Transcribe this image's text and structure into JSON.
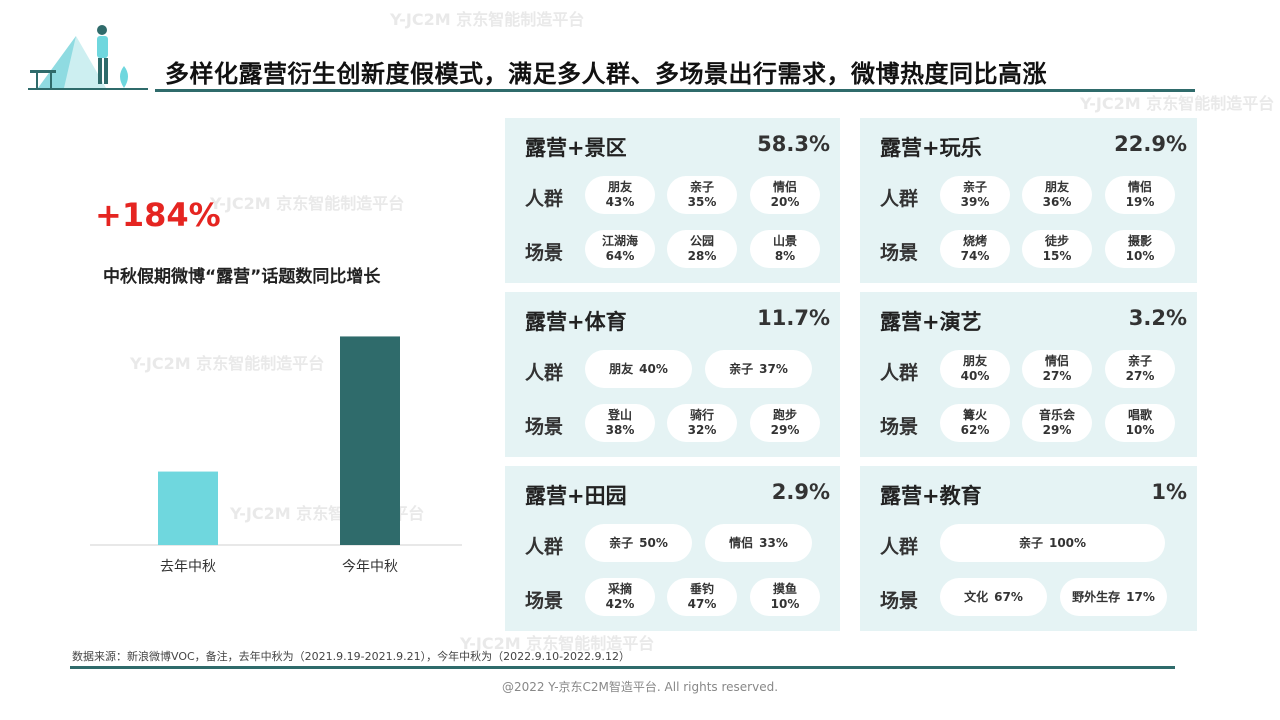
{
  "header": {
    "title": "多样化露营衍生创新度假模式，满足多人群、多场景出行需求，微博热度同比高涨"
  },
  "stat": {
    "value": "+184%",
    "desc": "中秋假期微博“露营”话题数同比增长"
  },
  "chart_data": {
    "type": "bar",
    "categories": [
      "去年中秋",
      "今年中秋"
    ],
    "values": [
      100,
      284
    ],
    "ylim": [
      0,
      320
    ],
    "colors": [
      "#6fd7de",
      "#2f6b6b"
    ],
    "grid": false
  },
  "cards": [
    {
      "title": "露营+景区",
      "pct": "58.3%",
      "rows": [
        {
          "label": "人群",
          "items": [
            {
              "name": "朋友",
              "value": "43%"
            },
            {
              "name": "亲子",
              "value": "35%"
            },
            {
              "name": "情侣",
              "value": "20%"
            }
          ]
        },
        {
          "label": "场景",
          "items": [
            {
              "name": "江湖海",
              "value": "64%"
            },
            {
              "name": "公园",
              "value": "28%"
            },
            {
              "name": "山景",
              "value": "8%"
            }
          ]
        }
      ]
    },
    {
      "title": "露营+玩乐",
      "pct": "22.9%",
      "rows": [
        {
          "label": "人群",
          "items": [
            {
              "name": "亲子",
              "value": "39%"
            },
            {
              "name": "朋友",
              "value": "36%"
            },
            {
              "name": "情侣",
              "value": "19%"
            }
          ]
        },
        {
          "label": "场景",
          "items": [
            {
              "name": "烧烤",
              "value": "74%"
            },
            {
              "name": "徒步",
              "value": "15%"
            },
            {
              "name": "摄影",
              "value": "10%"
            }
          ]
        }
      ]
    },
    {
      "title": "露营+体育",
      "pct": "11.7%",
      "rows": [
        {
          "label": "人群",
          "items": [
            {
              "name": "朋友",
              "value": "40%",
              "inline": true
            },
            {
              "name": "亲子",
              "value": "37%",
              "inline": true
            }
          ]
        },
        {
          "label": "场景",
          "items": [
            {
              "name": "登山",
              "value": "38%"
            },
            {
              "name": "骑行",
              "value": "32%"
            },
            {
              "name": "跑步",
              "value": "29%"
            }
          ]
        }
      ]
    },
    {
      "title": "露营+演艺",
      "pct": "3.2%",
      "rows": [
        {
          "label": "人群",
          "items": [
            {
              "name": "朋友",
              "value": "40%"
            },
            {
              "name": "情侣",
              "value": "27%"
            },
            {
              "name": "亲子",
              "value": "27%"
            }
          ]
        },
        {
          "label": "场景",
          "items": [
            {
              "name": "篝火",
              "value": "62%"
            },
            {
              "name": "音乐会",
              "value": "29%"
            },
            {
              "name": "唱歌",
              "value": "10%"
            }
          ]
        }
      ]
    },
    {
      "title": "露营+田园",
      "pct": "2.9%",
      "rows": [
        {
          "label": "人群",
          "items": [
            {
              "name": "亲子",
              "value": "50%",
              "inline": true
            },
            {
              "name": "情侣",
              "value": "33%",
              "inline": true
            }
          ]
        },
        {
          "label": "场景",
          "items": [
            {
              "name": "采摘",
              "value": "42%"
            },
            {
              "name": "垂钓",
              "value": "47%"
            },
            {
              "name": "摸鱼",
              "value": "10%"
            }
          ]
        }
      ]
    },
    {
      "title": "露营+教育",
      "pct": "1%",
      "rows": [
        {
          "label": "人群",
          "items": [
            {
              "name": "亲子",
              "value": "100%",
              "inline": true
            }
          ]
        },
        {
          "label": "场景",
          "items": [
            {
              "name": "文化",
              "value": "67%",
              "inline": true
            },
            {
              "name": "野外生存",
              "value": "17%",
              "inline": true
            }
          ]
        }
      ]
    }
  ],
  "footer": {
    "source": "数据来源：新浪微博VOC，备注，去年中秋为（2021.9.19-2021.9.21），今年中秋为（2022.9.10-2022.9.12）",
    "copyright": "@2022 Y-京东C2M智造平台. All rights reserved."
  },
  "watermark": {
    "line1": "Y-JC2M",
    "line2": "京东智能制造平台"
  }
}
